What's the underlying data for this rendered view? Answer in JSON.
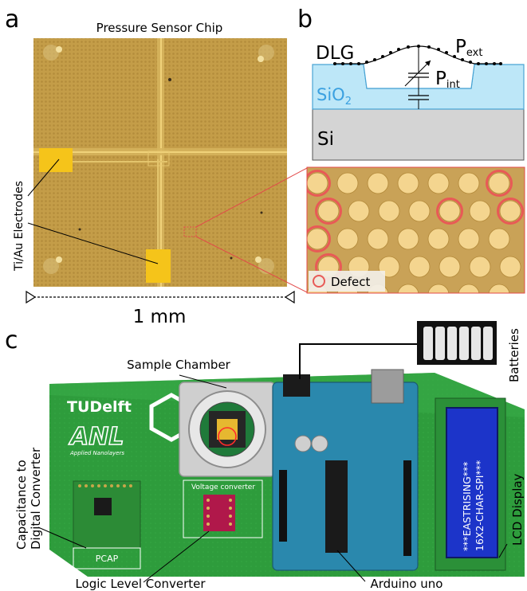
{
  "panel_a": {
    "letter": "a",
    "title": "Pressure Sensor Chip",
    "electrodes_label": "Ti/Au Electrodes",
    "scale_label": "1 mm"
  },
  "panel_b": {
    "letter": "b",
    "layer_dlg": "DLG",
    "p_ext_main": "P",
    "p_ext_sub": "ext",
    "p_int_main": "P",
    "p_int_sub": "int",
    "sio2_main": "SiO",
    "sio2_sub": "2",
    "si_label": "Si",
    "defect_label": "Defect"
  },
  "panel_c": {
    "letter": "c",
    "batteries_label": "Batteries",
    "sample_chamber_label": "Sample Chamber",
    "cdc_label_line1": "Capacitance to",
    "cdc_label_line2": "Digital Converter",
    "logic_level_label": "Logic Level Converter",
    "arduino_label": "Arduino uno",
    "lcd_label": "LCD Display",
    "board_logo_tu": "TUDelft",
    "board_logo_anl": "ANL",
    "board_logo_anl_sub": "Applied Nanolayers",
    "pcap_label": "PCAP",
    "voltage_converter_label": "Voltage converter",
    "lcd_line1": "***EASTRISING***",
    "lcd_line2": "16X2-CHAR-SPI***"
  },
  "colors": {
    "chip_gold": "#c9a44e",
    "electrode_yellow": "#f2c51d",
    "sio2_blue": "#b9e6f7",
    "si_gray": "#d3d3d3",
    "defect_red": "#e85a56",
    "pcb_green": "#2c9a3a",
    "arduino_blue": "#1f7fa8",
    "lcd_blue": "#1b33c8"
  }
}
